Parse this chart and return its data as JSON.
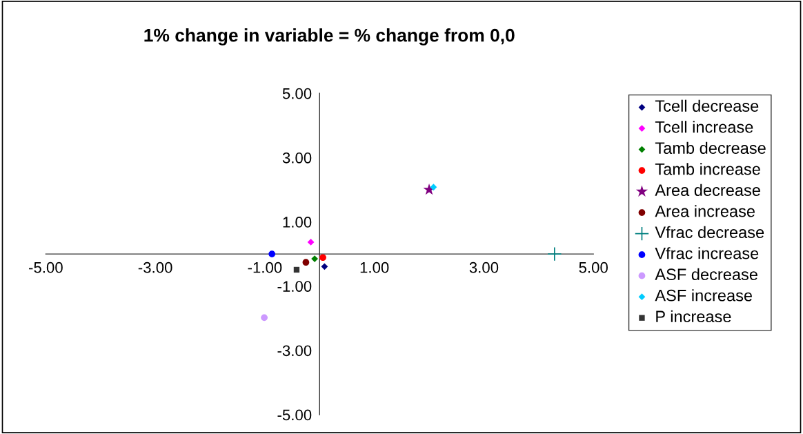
{
  "chart_data": {
    "type": "scatter",
    "title": "1% change in variable = % change from 0,0",
    "xlim": [
      -5,
      5
    ],
    "ylim": [
      -5,
      5
    ],
    "xticks": [
      {
        "value": -5,
        "label": "-5.00"
      },
      {
        "value": -3,
        "label": "-3.00"
      },
      {
        "value": -1,
        "label": "-1.00"
      },
      {
        "value": 1,
        "label": "1.00"
      },
      {
        "value": 3,
        "label": "3.00"
      },
      {
        "value": 5,
        "label": "5.00"
      }
    ],
    "yticks": [
      {
        "value": -5,
        "label": "-5.00"
      },
      {
        "value": -3,
        "label": "-3.00"
      },
      {
        "value": -1,
        "label": "-1.00"
      },
      {
        "value": 1,
        "label": "1.00"
      },
      {
        "value": 3,
        "label": "3.00"
      },
      {
        "value": 5,
        "label": "5.00"
      }
    ],
    "grid": false,
    "legend": "right",
    "series": [
      {
        "name": "Tcell decrease",
        "color": "#000080",
        "marker": "diamond",
        "x": [
          0.09
        ],
        "values": [
          -0.39
        ]
      },
      {
        "name": "Tcell increase",
        "color": "#ff00ff",
        "marker": "diamond",
        "x": [
          -0.16
        ],
        "values": [
          0.37
        ]
      },
      {
        "name": "Tamb decrease",
        "color": "#008000",
        "marker": "diamond",
        "x": [
          -0.09
        ],
        "values": [
          -0.15
        ]
      },
      {
        "name": "Tamb increase",
        "color": "#ff0000",
        "marker": "circle",
        "x": [
          0.06
        ],
        "values": [
          -0.11
        ]
      },
      {
        "name": "Area decrease",
        "color": "#800080",
        "marker": "star",
        "x": [
          2.0
        ],
        "values": [
          2.0
        ]
      },
      {
        "name": "Area increase",
        "color": "#800000",
        "marker": "circle",
        "x": [
          -0.25
        ],
        "values": [
          -0.26
        ]
      },
      {
        "name": "Vfrac decrease",
        "color": "#008080",
        "marker": "cross",
        "x": [
          4.29
        ],
        "values": [
          0.0
        ]
      },
      {
        "name": "Vfrac increase",
        "color": "#0000ff",
        "marker": "circle",
        "x": [
          -0.87
        ],
        "values": [
          0.0
        ]
      },
      {
        "name": "ASF decrease",
        "color": "#cc99ff",
        "marker": "circle",
        "x": [
          -1.01
        ],
        "values": [
          -1.98
        ]
      },
      {
        "name": "ASF increase",
        "color": "#00ccff",
        "marker": "diamond",
        "x": [
          2.08
        ],
        "values": [
          2.08
        ]
      },
      {
        "name": "P increase",
        "color": "#333333",
        "marker": "square",
        "x": [
          -0.42
        ],
        "values": [
          -0.49
        ]
      }
    ]
  }
}
